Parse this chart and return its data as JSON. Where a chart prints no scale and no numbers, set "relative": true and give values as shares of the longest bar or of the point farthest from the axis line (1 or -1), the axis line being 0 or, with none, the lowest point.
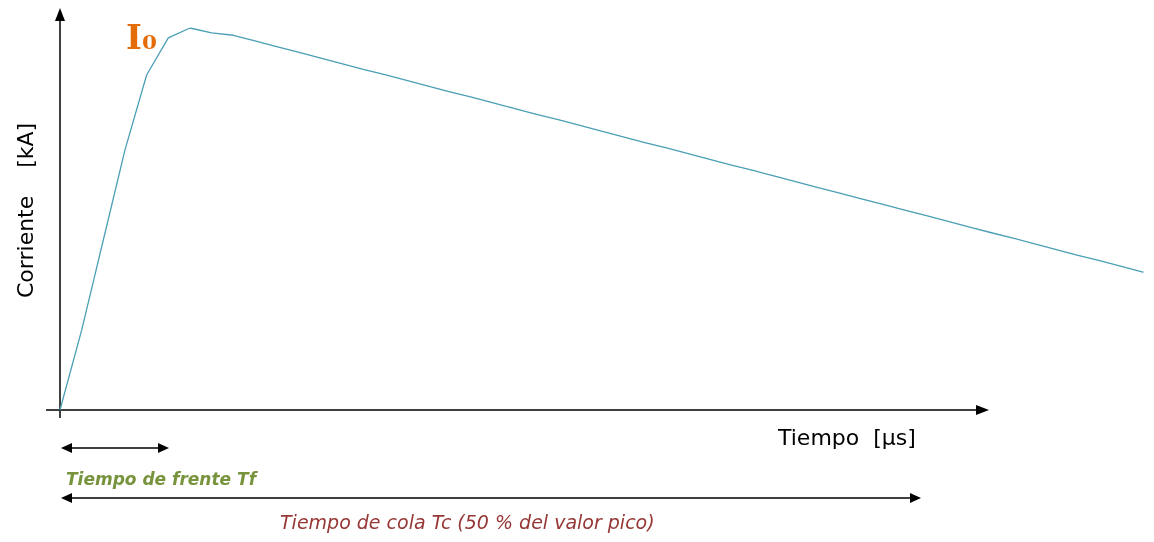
{
  "chart_data": {
    "type": "line",
    "relative": true,
    "xlabel": "Tiempo  [μs]",
    "ylabel": "Corriente    [kA]",
    "categories": [
      null,
      null,
      null,
      null,
      null,
      null,
      null,
      null,
      null,
      null,
      null,
      null,
      null,
      null,
      null,
      null,
      null,
      null,
      null,
      null,
      null,
      null,
      null,
      null,
      null,
      null,
      null,
      null,
      null,
      null,
      null,
      null,
      null,
      null,
      null,
      null,
      null,
      null,
      null,
      null,
      null,
      null,
      null,
      null,
      null,
      null,
      null,
      null,
      null,
      null,
      null
    ],
    "series": [
      {
        "color": "#4a9fb5",
        "values": [
          0,
          0.209,
          0.445,
          0.681,
          0.877,
          0.974,
          1.0,
          0.987,
          0.981,
          0.966,
          0.951,
          0.937,
          0.922,
          0.907,
          0.892,
          0.878,
          0.863,
          0.848,
          0.833,
          0.819,
          0.804,
          0.789,
          0.774,
          0.76,
          0.745,
          0.73,
          0.715,
          0.7,
          0.686,
          0.671,
          0.656,
          0.641,
          0.627,
          0.612,
          0.597,
          0.582,
          0.568,
          0.553,
          0.538,
          0.523,
          0.509,
          0.494,
          0.479,
          0.464,
          0.45,
          0.435,
          0.42,
          0.405,
          0.391,
          0.376,
          0.361
        ]
      }
    ],
    "annotations": [
      "I₀",
      "Tiempo de frente Tf",
      "Tiempo de cola Tc (50 % del valor pico)"
    ],
    "grid": false,
    "marker": "none",
    "line_style": "solid"
  }
}
